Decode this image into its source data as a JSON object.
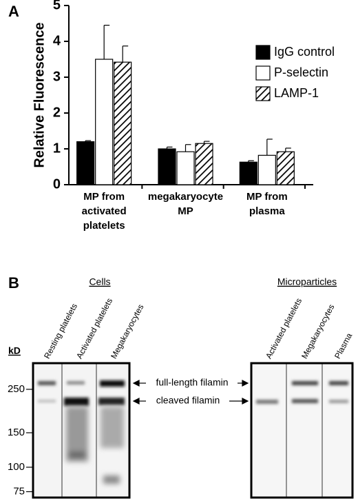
{
  "chart_data": [
    {
      "type": "bar",
      "panel": "A",
      "ylabel": "Relative Fluorescence",
      "categories": [
        [
          "MP from",
          "activated",
          "platelets"
        ],
        [
          "megakaryocyte",
          "MP"
        ],
        [
          "MP from",
          "plasma"
        ]
      ],
      "series": [
        {
          "name": "IgG control",
          "color": "#000000",
          "values": [
            1.2,
            1.0,
            0.63
          ],
          "errors": [
            0.03,
            0.05,
            0.04
          ]
        },
        {
          "name": "P-selectin",
          "color": "#ffffff",
          "values": [
            3.5,
            0.92,
            0.82
          ],
          "errors": [
            0.95,
            0.2,
            0.45
          ]
        },
        {
          "name": "LAMP-1",
          "color": "#ffffff",
          "hatch": true,
          "values": [
            3.42,
            1.15,
            0.92
          ],
          "errors": [
            0.45,
            0.06,
            0.1
          ]
        }
      ],
      "ylim": [
        0,
        5
      ],
      "yticks": [
        0,
        1,
        2,
        3,
        4,
        5
      ],
      "legend": "right"
    },
    {
      "type": "blot",
      "panel": "B",
      "unit": "kD",
      "groups": [
        {
          "name": "Cells",
          "lanes": [
            "Resting platelets",
            "Activated platelets",
            "Megakaryocytes"
          ]
        },
        {
          "name": "Microparticles",
          "lanes": [
            "Activated platelets",
            "Megakaryocytes",
            "Plasma"
          ]
        }
      ],
      "ylim": [
        70,
        340
      ],
      "log": true,
      "yticks": [
        250,
        150,
        100,
        75
      ],
      "annotations": [
        "full-length filamin",
        "cleaved filamin"
      ]
    }
  ]
}
